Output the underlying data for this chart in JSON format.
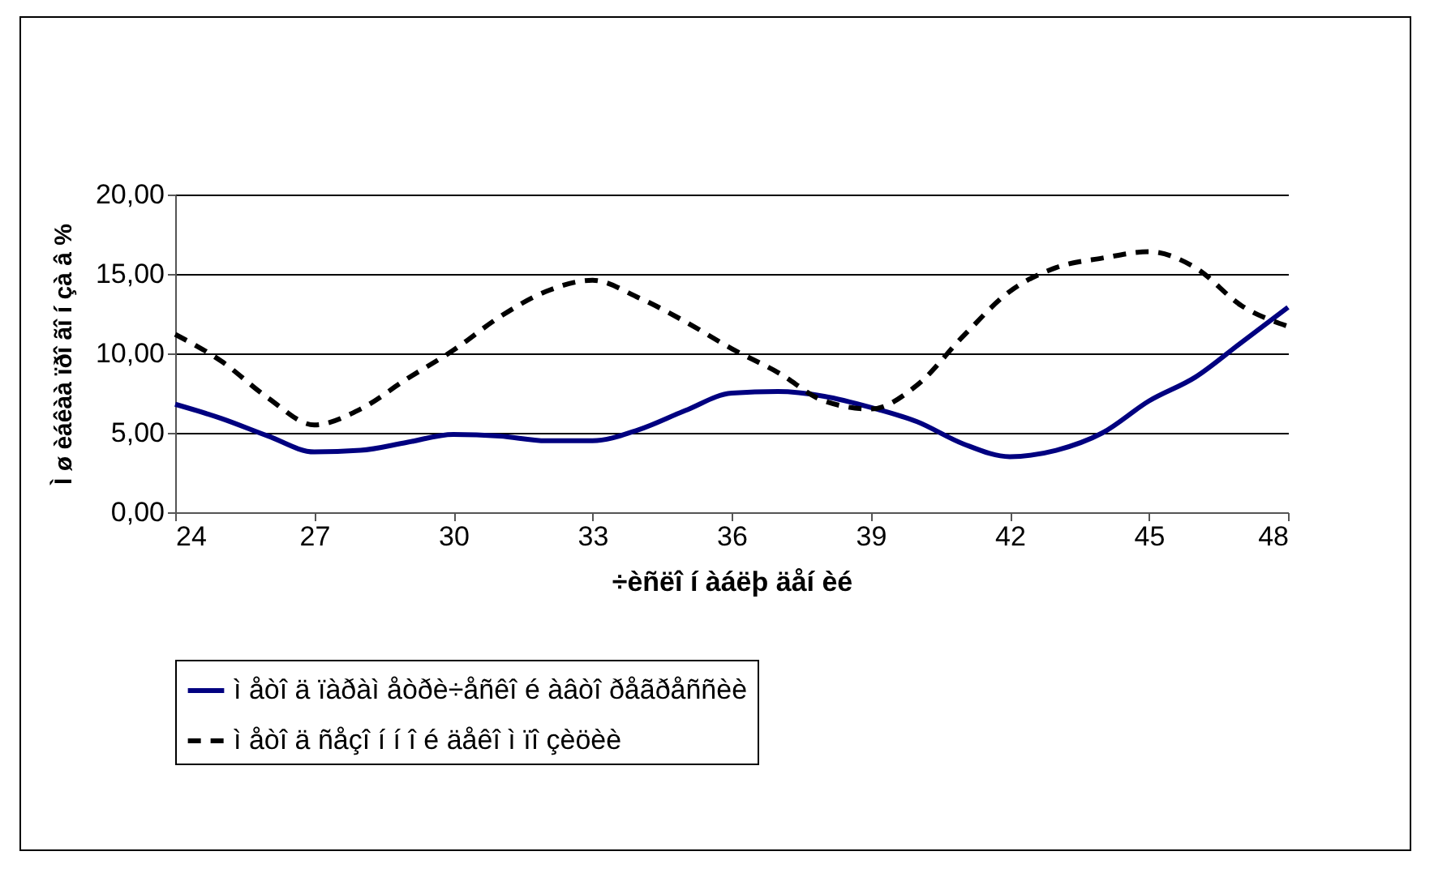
{
  "chart_data": {
    "type": "line",
    "xlabel": "÷èñëî í àáëþ äåí èé",
    "ylabel": "Ì ø èáêàà ïðî ãî í çà â %",
    "x": [
      24,
      25,
      26,
      27,
      28,
      29,
      30,
      31,
      32,
      33,
      34,
      35,
      36,
      37,
      38,
      39,
      40,
      41,
      42,
      43,
      44,
      45,
      46,
      47,
      48
    ],
    "series": [
      {
        "name": "ì åòî ä ïàðàì åòðè÷åñêî é àâòî ðåãðåññèè",
        "color": "#000080",
        "line_style": "solid",
        "values": [
          6.8,
          5.9,
          4.8,
          3.8,
          3.9,
          4.4,
          4.9,
          4.8,
          4.5,
          4.5,
          5.2,
          6.4,
          7.5,
          7.6,
          7.3,
          6.6,
          5.7,
          4.3,
          3.5,
          3.9,
          5.0,
          7.0,
          8.5,
          10.7,
          12.9
        ]
      },
      {
        "name": "ì åòî ä ñåçî í í î é äåêî ì ïî çèöèè",
        "color": "#000000",
        "line_style": "dashed",
        "values": [
          11.2,
          9.5,
          7.2,
          5.5,
          6.5,
          8.4,
          10.2,
          12.3,
          13.9,
          14.6,
          13.5,
          12.0,
          10.3,
          8.8,
          7.0,
          6.5,
          8.0,
          11.1,
          13.9,
          15.4,
          16.0,
          16.4,
          15.4,
          13.0,
          11.7
        ]
      }
    ],
    "xlim": [
      24,
      48
    ],
    "xticks": [
      24,
      27,
      30,
      33,
      36,
      39,
      42,
      45,
      48
    ],
    "ylim": [
      0,
      20
    ],
    "yticks": [
      {
        "value": 0,
        "label": "0,00"
      },
      {
        "value": 5,
        "label": "5,00"
      },
      {
        "value": 10,
        "label": "10,00"
      },
      {
        "value": 15,
        "label": "15,00"
      },
      {
        "value": 20,
        "label": "20,00"
      }
    ],
    "grid": "y",
    "legend": "bottom",
    "marker": "none"
  }
}
